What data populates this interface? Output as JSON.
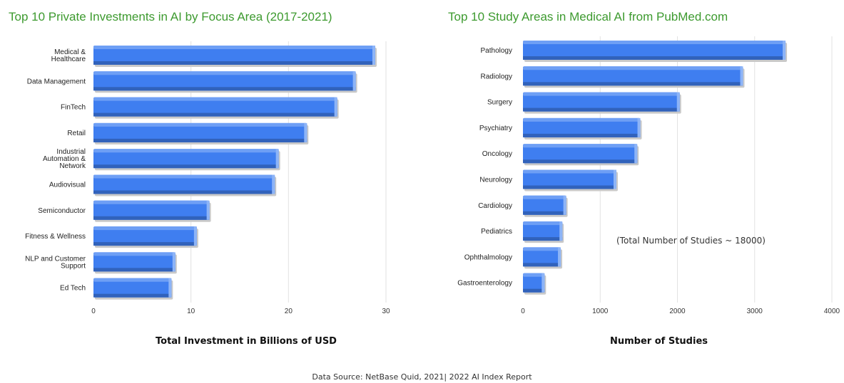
{
  "chart_data": [
    {
      "type": "bar",
      "orientation": "horizontal",
      "title": "Top 10 Private Investments in AI by Focus Area (2017-2021)",
      "xlabel": "Total Investment in Billions of USD",
      "ylabel": "",
      "categories": [
        "Medical & Healthcare",
        "Data Management",
        "FinTech",
        "Retail",
        "Industrial Automation & Network",
        "Audiovisual",
        "Semiconductor",
        "Fitness & Wellness",
        "NLP and Customer Support",
        "Ed Tech"
      ],
      "category_lines": [
        [
          "Medical &",
          "Healthcare"
        ],
        [
          "Data Management"
        ],
        [
          "FinTech"
        ],
        [
          "Retail"
        ],
        [
          "Industrial",
          "Automation &",
          "Network"
        ],
        [
          "Audiovisual"
        ],
        [
          "Semiconductor"
        ],
        [
          "Fitness & Wellness"
        ],
        [
          "NLP and Customer",
          "Support"
        ],
        [
          "Ed Tech"
        ]
      ],
      "values": [
        28.9,
        26.9,
        25.0,
        21.9,
        19.0,
        18.6,
        11.9,
        10.6,
        8.4,
        8.0
      ],
      "xlim": [
        0,
        30
      ],
      "xticks": [
        0,
        10,
        20,
        30
      ],
      "grid": true,
      "bar_color": "#3f7ef0"
    },
    {
      "type": "bar",
      "orientation": "horizontal",
      "title": "Top 10 Study Areas in Medical AI from PubMed.com",
      "xlabel": "Number of Studies",
      "ylabel": "",
      "categories": [
        "Pathology",
        "Radiology",
        "Surgery",
        "Psychiatry",
        "Oncology",
        "Neurology",
        "Cardiology",
        "Pediatrics",
        "Ophthalmology",
        "Gastroenterology"
      ],
      "category_lines": [
        [
          "Pathology"
        ],
        [
          "Radiology"
        ],
        [
          "Surgery"
        ],
        [
          "Psychiatry"
        ],
        [
          "Oncology"
        ],
        [
          "Neurology"
        ],
        [
          "Cardiology"
        ],
        [
          "Pediatrics"
        ],
        [
          "Ophthalmology"
        ],
        [
          "Gastroenterology"
        ]
      ],
      "values": [
        3400,
        2850,
        2030,
        1520,
        1480,
        1210,
        560,
        510,
        490,
        280
      ],
      "xlim": [
        0,
        4000
      ],
      "xticks": [
        0,
        1000,
        2000,
        3000,
        4000
      ],
      "grid": true,
      "bar_color": "#3f7ef0",
      "annotation": "(Total Number of Studies ~ 18000)"
    }
  ],
  "source_note": "Data Source: NetBase Quid, 2021| 2022 AI Index Report"
}
